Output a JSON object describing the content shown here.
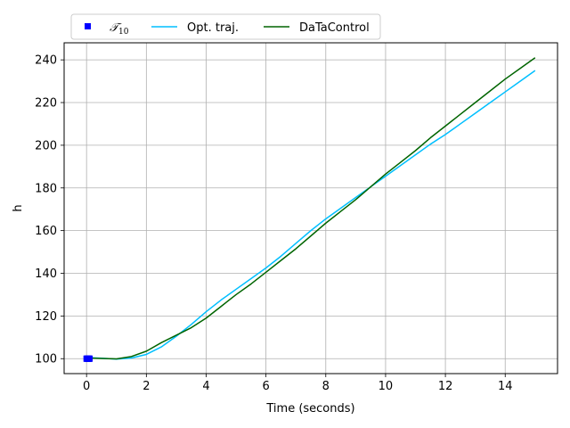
{
  "chart_data": {
    "type": "line",
    "title": "",
    "xlabel": "Time (seconds)",
    "ylabel": "h",
    "xlim": [
      -0.75,
      15.75
    ],
    "ylim": [
      93,
      248
    ],
    "xticks": [
      0,
      2,
      4,
      6,
      8,
      10,
      12,
      14
    ],
    "yticks": [
      100,
      120,
      140,
      160,
      180,
      200,
      220,
      240
    ],
    "grid": true,
    "legend_position": "top, above plot",
    "legend_columns": 3,
    "series": [
      {
        "name": "𝒯10",
        "name_main": "𝒯",
        "name_sub": "10",
        "kind": "markers",
        "marker": "square",
        "color": "#0000ff",
        "x": [
          0,
          0.02,
          0.04,
          0.06,
          0.08,
          0.1
        ],
        "y": [
          100,
          100,
          100,
          100,
          100,
          100
        ]
      },
      {
        "name": "Opt. traj.",
        "kind": "line",
        "color": "#00bfff",
        "x": [
          0,
          0.5,
          1,
          1.5,
          2,
          2.5,
          3,
          3.5,
          4,
          4.5,
          5,
          5.5,
          6,
          6.5,
          7,
          7.5,
          8,
          8.5,
          9,
          9.5,
          10,
          10.5,
          11,
          11.5,
          12,
          12.5,
          13,
          13.5,
          14,
          14.5,
          15
        ],
        "y": [
          100.5,
          100.2,
          99.8,
          100.3,
          102,
          105.5,
          110.5,
          116,
          122,
          127.5,
          132.5,
          137.5,
          142.5,
          148,
          154,
          160,
          165.5,
          170.5,
          175.5,
          180.5,
          185.5,
          190.5,
          195.5,
          200.5,
          205,
          210,
          215,
          220,
          225,
          230,
          235
        ]
      },
      {
        "name": "DaTaControl",
        "kind": "line",
        "color": "#006400",
        "x": [
          0,
          0.5,
          1,
          1.5,
          2,
          2.5,
          3,
          3.5,
          4,
          4.5,
          5,
          5.5,
          6,
          6.5,
          7,
          7.5,
          8,
          8.5,
          9,
          9.5,
          10,
          10.5,
          11,
          11.5,
          12,
          12.5,
          13,
          13.5,
          14,
          14.5,
          15
        ],
        "y": [
          100.3,
          100.1,
          99.9,
          101,
          103.5,
          107.5,
          111,
          114.5,
          119,
          124.5,
          130,
          135,
          140.5,
          146,
          151.5,
          157.5,
          163.5,
          169,
          174.5,
          180.5,
          186.5,
          192,
          197.5,
          203.5,
          209,
          214.5,
          220,
          225.5,
          231,
          236,
          241
        ]
      }
    ]
  }
}
